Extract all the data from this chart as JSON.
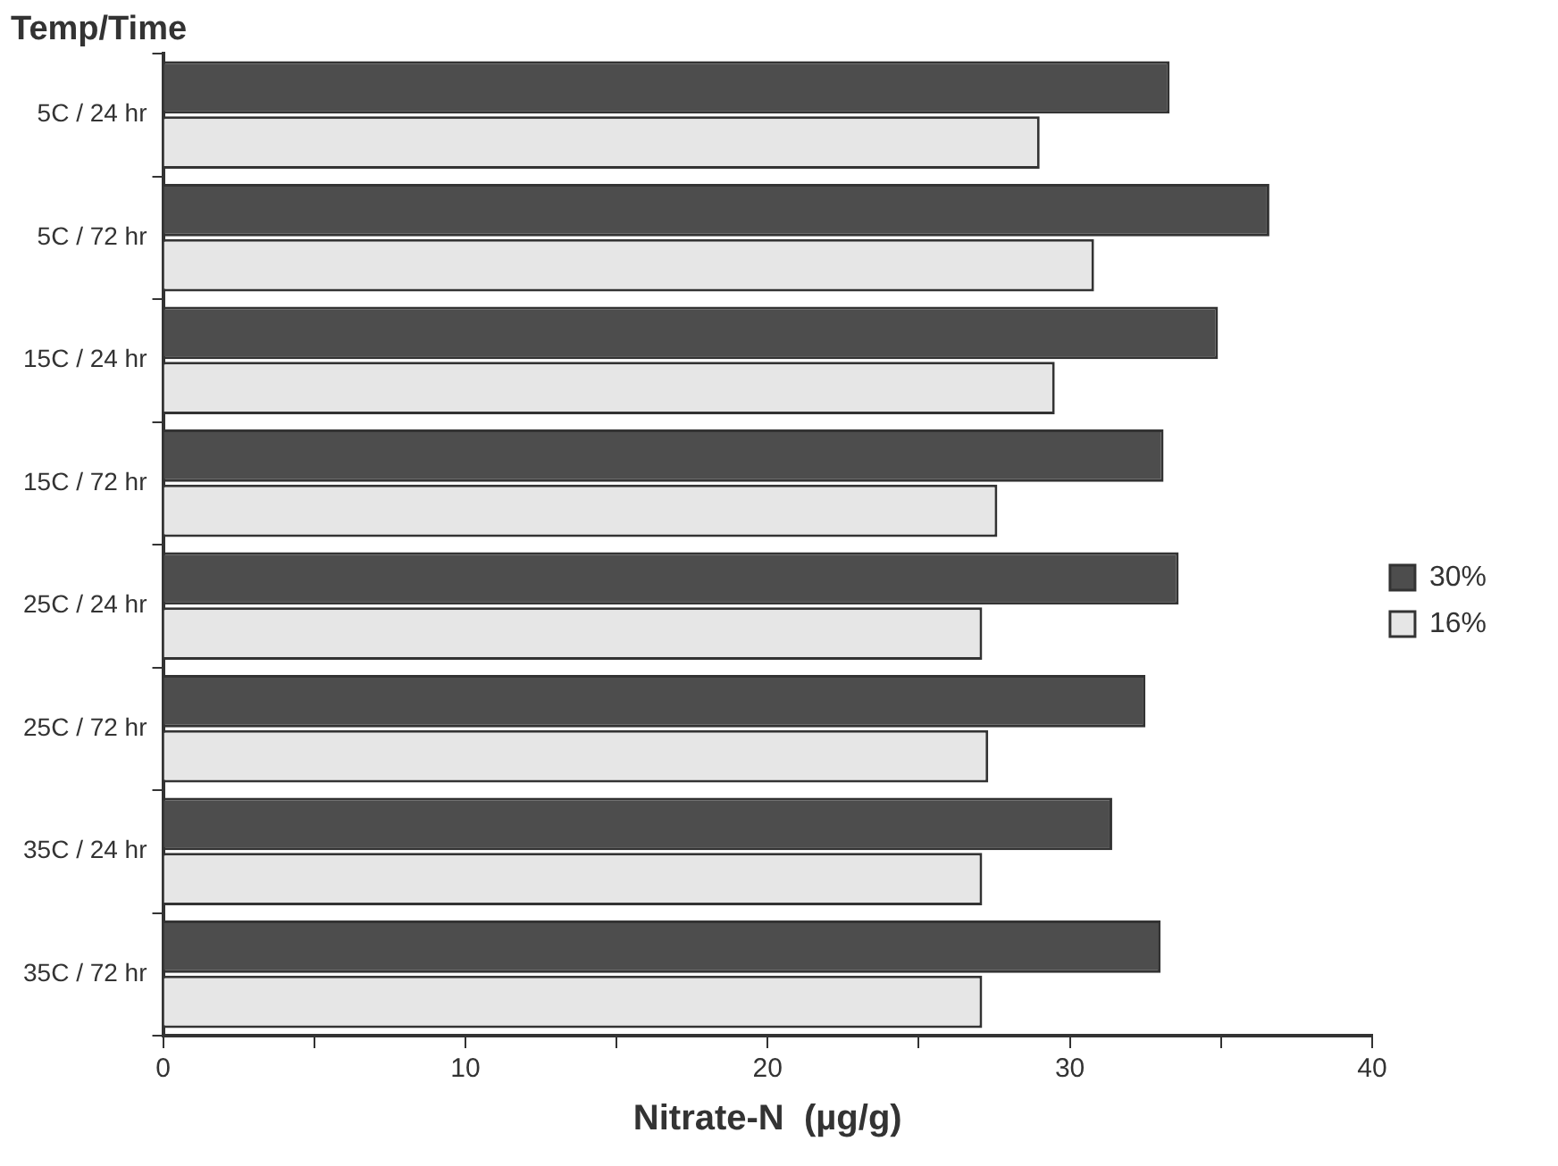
{
  "chart_data": {
    "type": "bar",
    "orientation": "horizontal",
    "ylabel": "Temp/Time",
    "xlabel": "Nitrate-N  (µg/g)",
    "categories": [
      "5C / 24 hr",
      "5C / 72 hr",
      "15C / 24 hr",
      "15C / 72 hr",
      "25C / 24 hr",
      "25C / 72 hr",
      "35C / 24 hr",
      "35C / 72 hr"
    ],
    "series": [
      {
        "name": "30%",
        "color": "#4d4d4d",
        "values": [
          33.3,
          36.6,
          34.9,
          33.1,
          33.6,
          32.5,
          31.4,
          33.0
        ]
      },
      {
        "name": "16%",
        "color": "#e6e6e6",
        "values": [
          29.0,
          30.8,
          29.5,
          27.6,
          27.1,
          27.3,
          27.1,
          27.1
        ]
      }
    ],
    "xlim": [
      0,
      40
    ],
    "xticks": [
      0,
      {
        "value": 5,
        "label": null
      },
      10,
      {
        "value": 15,
        "label": null
      },
      20,
      {
        "value": 25,
        "label": null
      },
      30,
      {
        "value": 35,
        "label": null
      },
      40
    ],
    "grid": false,
    "legend": "right"
  }
}
